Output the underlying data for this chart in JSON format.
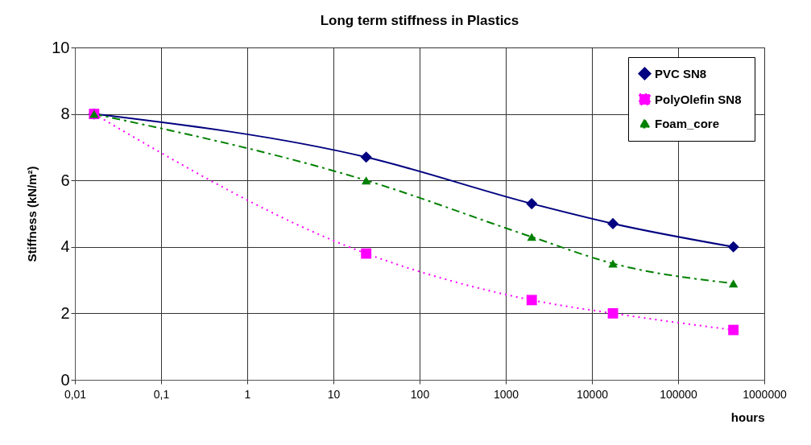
{
  "chart_data": {
    "type": "line",
    "title": "Long term stiffness in Plastics",
    "xlabel": "hours",
    "ylabel": "Stiffness (kN/m²)",
    "log": "x",
    "grid": true,
    "legend": "top right",
    "xlim": [
      0.01,
      1000000
    ],
    "xticks": [
      {
        "value": 0.01,
        "label": "0,01"
      },
      {
        "value": 0.1,
        "label": "0,1"
      },
      1,
      10,
      100,
      1000,
      10000,
      100000,
      1000000
    ],
    "ylim": [
      0,
      10
    ],
    "yticks": [
      0,
      2,
      4,
      6,
      8,
      10
    ],
    "x": [
      0.0167,
      24,
      2000,
      17520,
      438000
    ],
    "series": [
      {
        "name": "PVC SN8",
        "color": "#000080",
        "marker": "diamond",
        "line_style": "solid",
        "values": [
          8,
          6.7,
          5.3,
          4.7,
          4.0
        ]
      },
      {
        "name": "PolyOlefin  SN8",
        "color": "#ff00ff",
        "marker": "square",
        "line_style": "dotted",
        "values": [
          8,
          3.8,
          2.4,
          2.0,
          1.5
        ]
      },
      {
        "name": "Foam_core",
        "color": "#008000",
        "marker": "triangle",
        "line_style": "dashed",
        "values": [
          8,
          6.0,
          4.3,
          3.5,
          2.9
        ]
      }
    ]
  }
}
